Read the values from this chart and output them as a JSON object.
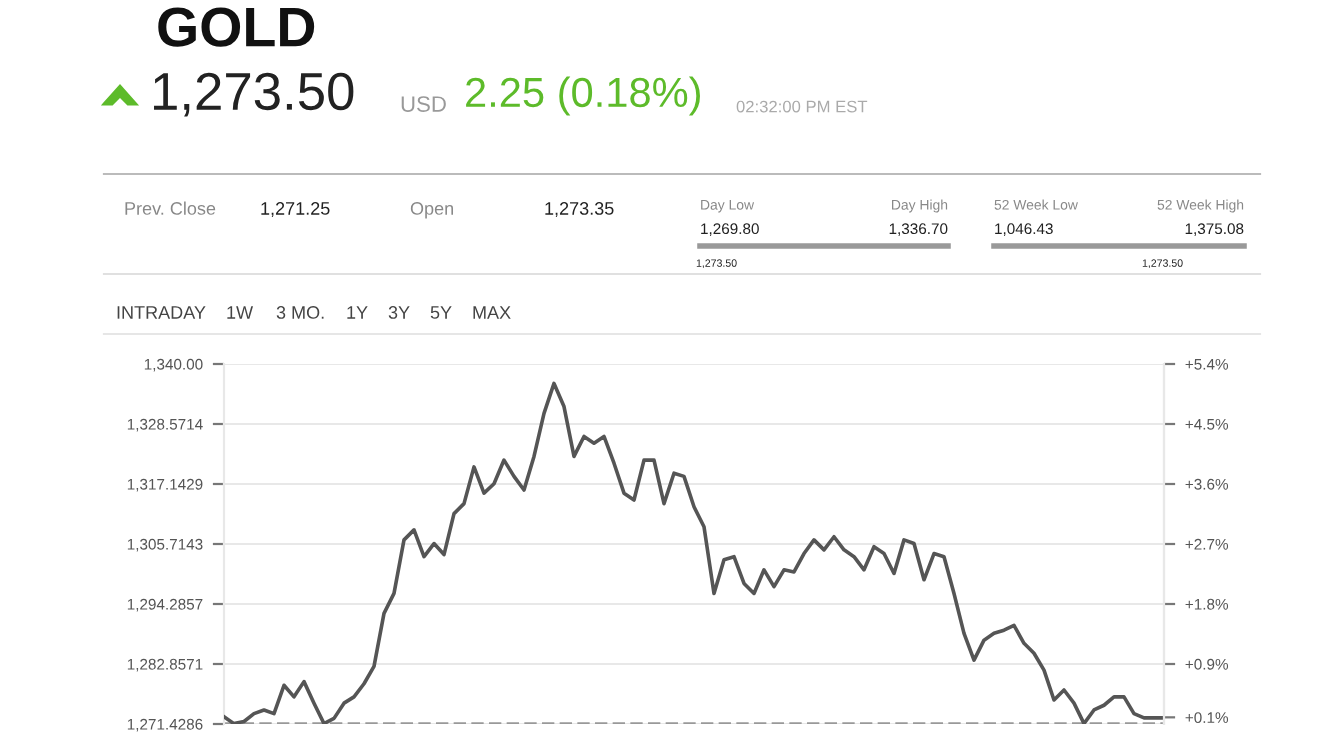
{
  "chart_data": {
    "type": "line",
    "title": "GOLD",
    "annotations": [
      "1,273.50",
      "USD",
      "2.25 (0.18%)",
      "02:32:00 PM EST",
      "Prev. Close",
      "1,271.25",
      "Open",
      "1,273.35",
      "Day Low",
      "1,269.80",
      "Day High",
      "1,336.70",
      "52 Week Low",
      "1,046.43",
      "52 Week High",
      "1,375.08",
      "1,273.50",
      "1,273.50",
      "INTRADAY",
      "1W",
      "3 MO.",
      "1Y",
      "3Y",
      "5Y",
      "MAX"
    ],
    "series": [
      {
        "color": "#555555",
        "values": [
          1272.8,
          1271.5,
          1271.9,
          1273.4,
          1274.1,
          1273.4,
          1278.8,
          1276.6,
          1279.5,
          1275.4,
          1271.5,
          1272.5,
          1275.4,
          1276.6,
          1279.1,
          1282.4,
          1292.5,
          1296.3,
          1306.5,
          1308.4,
          1303.3,
          1305.8,
          1303.7,
          1311.5,
          1313.4,
          1320.4,
          1315.4,
          1317.2,
          1321.7,
          1318.6,
          1316.0,
          1322.4,
          1330.6,
          1336.3,
          1331.9,
          1322.4,
          1326.2,
          1324.9,
          1326.2,
          1321.1,
          1315.4,
          1314.1,
          1321.7,
          1321.7,
          1313.4,
          1319.2,
          1318.6,
          1312.8,
          1309.0,
          1296.3,
          1302.7,
          1303.3,
          1298.2,
          1296.3,
          1300.8,
          1297.6,
          1300.8,
          1300.4,
          1303.9,
          1306.5,
          1304.6,
          1307.1,
          1304.6,
          1303.3,
          1300.8,
          1305.2,
          1303.9,
          1300.1,
          1306.5,
          1305.8,
          1298.9,
          1303.9,
          1303.3,
          1296.3,
          1288.7,
          1283.6,
          1287.4,
          1288.7,
          1289.3,
          1290.2,
          1286.8,
          1284.9,
          1281.7,
          1276.0,
          1277.9,
          1275.4,
          1271.5,
          1274.1,
          1275.0,
          1276.6,
          1276.6,
          1273.4,
          1272.6,
          1272.6,
          1272.6
        ]
      }
    ],
    "categories": [
      null,
      null,
      null,
      null,
      null,
      null,
      null,
      null,
      null,
      null,
      null,
      null,
      null,
      null,
      null,
      null,
      null,
      null,
      null,
      null,
      null,
      null,
      null,
      null,
      null,
      null,
      null,
      null,
      null,
      null,
      null,
      null,
      null,
      null,
      null,
      null,
      null,
      null,
      null,
      null,
      null,
      null,
      null,
      null,
      null,
      null,
      null,
      null,
      null,
      null,
      null,
      null,
      null,
      null,
      null,
      null,
      null,
      null,
      null,
      null,
      null,
      null,
      null,
      null,
      null,
      null,
      null,
      null,
      null,
      null,
      null,
      null,
      null,
      null,
      null,
      null,
      null,
      null,
      null,
      null,
      null,
      null,
      null,
      null,
      null,
      null,
      null,
      null,
      null,
      null,
      null,
      null,
      null,
      null,
      null
    ],
    "ylim": [
      1271.4286,
      1340
    ],
    "yticks": [
      {
        "value": 1271.4286,
        "label": "1,271.4286"
      },
      {
        "value": 1282.8571,
        "label": "1,282.8571"
      },
      {
        "value": 1294.2857,
        "label": "1,294.2857"
      },
      {
        "value": 1305.7143,
        "label": "1,305.7143"
      },
      {
        "value": 1317.1429,
        "label": "1,317.1429"
      },
      {
        "value": 1328.5714,
        "label": "1,328.5714"
      },
      {
        "value": 1340,
        "label": "1,340.00"
      }
    ],
    "y2lim": [
      0,
      5.4
    ],
    "y2ticks": [
      {
        "value": 0.1,
        "label": "+0.1%"
      },
      {
        "value": 0.9,
        "label": "+0.9%"
      },
      {
        "value": 1.8,
        "label": "+1.8%"
      },
      {
        "value": 2.7,
        "label": "+2.7%"
      },
      {
        "value": 3.6,
        "label": "+3.6%"
      },
      {
        "value": 4.5,
        "label": "+4.5%"
      },
      {
        "value": 5.4,
        "label": "+5.4%"
      }
    ],
    "ref_lines": [
      {
        "axis": "y",
        "value": 1271.4286,
        "color": "#999999",
        "line_style": "dashed"
      }
    ],
    "grid": "y",
    "marker": "none",
    "line_style": "solid",
    "tick_labels": "y"
  }
}
